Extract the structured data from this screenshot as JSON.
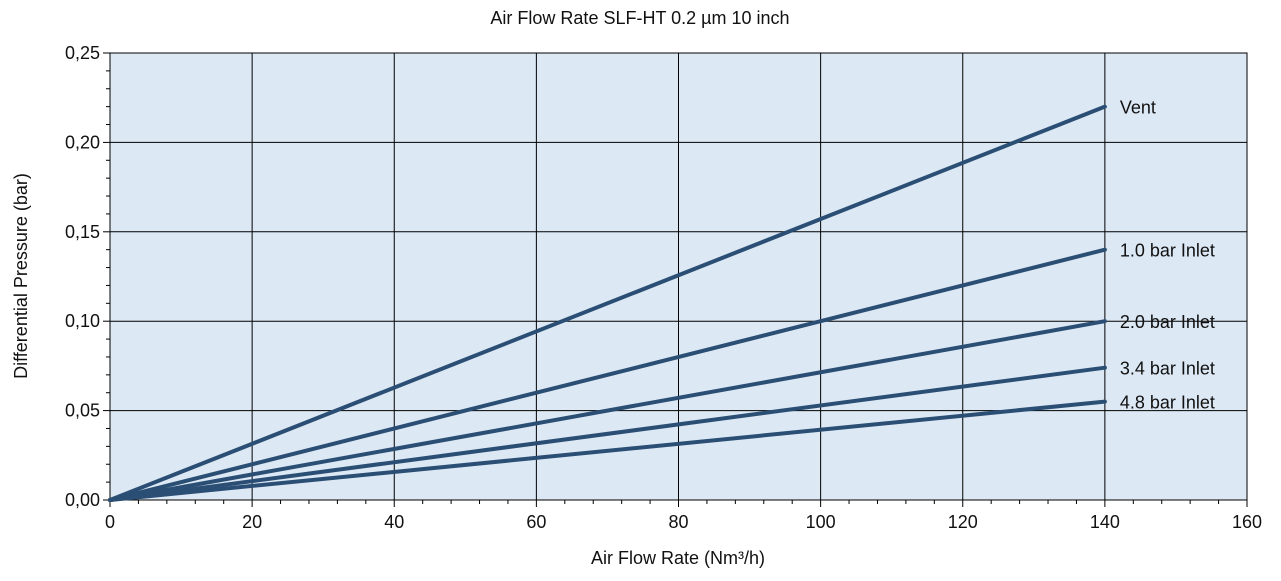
{
  "chart_data": {
    "type": "line",
    "title": "Air Flow Rate SLF-HT 0.2 µm  10 inch",
    "xlabel": "Air Flow Rate (Nm³/h)",
    "ylabel": "Differential Pressure (bar)",
    "xlim": [
      0,
      160
    ],
    "ylim": [
      0,
      0.25
    ],
    "x_ticks": [
      "0",
      "20",
      "40",
      "60",
      "80",
      "100",
      "120",
      "140",
      "160"
    ],
    "y_ticks": [
      "0,00",
      "0,05",
      "0,10",
      "0,15",
      "0,20",
      "0,25"
    ],
    "grid": true,
    "x_minor_step": 4,
    "y_minor_step": 0.01,
    "series": [
      {
        "name": "Vent",
        "x": [
          0,
          140
        ],
        "y": [
          0,
          0.22
        ]
      },
      {
        "name": "1.0 bar Inlet",
        "x": [
          0,
          140
        ],
        "y": [
          0,
          0.14
        ]
      },
      {
        "name": "2.0 bar Inlet",
        "x": [
          0,
          140
        ],
        "y": [
          0,
          0.1
        ]
      },
      {
        "name": "3.4 bar Inlet",
        "x": [
          0,
          140
        ],
        "y": [
          0,
          0.074
        ]
      },
      {
        "name": "4.8 bar Inlet",
        "x": [
          0,
          140
        ],
        "y": [
          0,
          0.055
        ]
      }
    ],
    "colors": {
      "plot_background": "#dde8f5",
      "line": "#2b4f74",
      "grid": "#000000"
    }
  }
}
